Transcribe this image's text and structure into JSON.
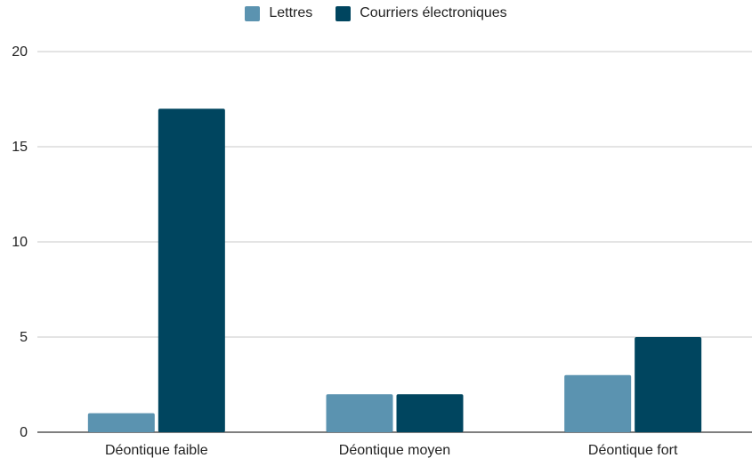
{
  "chart_data": {
    "type": "bar",
    "categories": [
      "Déontique faible",
      "Déontique moyen",
      "Déontique fort"
    ],
    "series": [
      {
        "name": "Lettres",
        "values": [
          1,
          2,
          3
        ],
        "color": "#5b93b0"
      },
      {
        "name": "Courriers électroniques",
        "values": [
          17,
          2,
          5
        ],
        "color": "#00455f"
      }
    ],
    "ylim": [
      0,
      20
    ],
    "yticks": [
      0,
      5,
      10,
      15,
      20
    ],
    "grid": true,
    "legend_position": "top",
    "title": "",
    "xlabel": "",
    "ylabel": ""
  }
}
